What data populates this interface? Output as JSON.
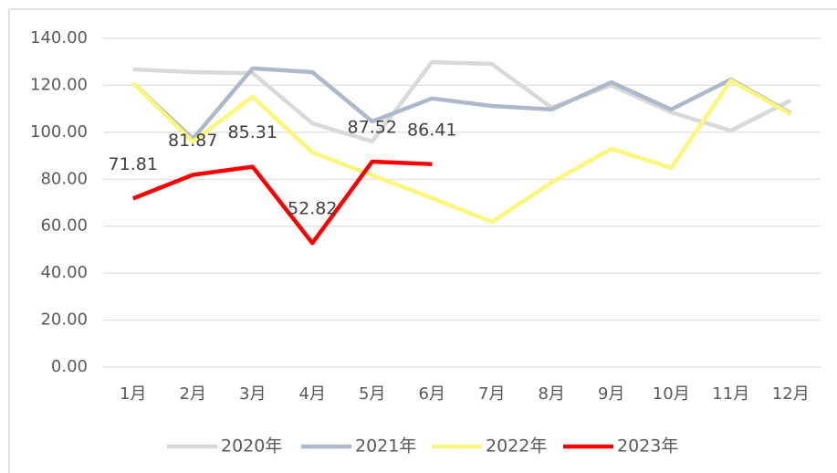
{
  "chart_data": {
    "type": "line",
    "categories": [
      "1月",
      "2月",
      "3月",
      "4月",
      "5月",
      "6月",
      "7月",
      "8月",
      "9月",
      "10月",
      "11月",
      "12月"
    ],
    "series": [
      {
        "name": "2020年",
        "color": "#d9d9d9",
        "values": [
          126.8,
          125.6,
          125.2,
          103.8,
          96.1,
          129.9,
          129.1,
          110.5,
          120,
          108.5,
          100.7,
          113.6
        ]
      },
      {
        "name": "2021年",
        "color": "#adb9ca",
        "values": [
          121,
          97.2,
          127.2,
          125.6,
          104.6,
          114.4,
          111.2,
          109.7,
          121.3,
          109.7,
          122.5,
          108.1
        ]
      },
      {
        "name": "2022年",
        "color": "#fbf77a",
        "values": [
          121,
          96,
          115.1,
          91.4,
          81.7,
          72,
          61.8,
          78.6,
          93,
          84.8,
          122.1,
          107.7
        ]
      },
      {
        "name": "2023年",
        "color": "#ff0000",
        "values": [
          71.81,
          81.87,
          85.31,
          52.82,
          87.52,
          86.41,
          null,
          null,
          null,
          null,
          null,
          null
        ],
        "data_labels": true
      }
    ],
    "ylim": [
      0,
      140
    ],
    "yticks": [
      {
        "value": 0,
        "label": "0.00"
      },
      {
        "value": 20,
        "label": "20.00"
      },
      {
        "value": 40,
        "label": "40.00"
      },
      {
        "value": 60,
        "label": "60.00"
      },
      {
        "value": 80,
        "label": "80.00"
      },
      {
        "value": 100,
        "label": "100.00"
      },
      {
        "value": 120,
        "label": "120.00"
      },
      {
        "value": 140,
        "label": "140.00"
      }
    ],
    "grid": true,
    "legend": "bottom"
  }
}
